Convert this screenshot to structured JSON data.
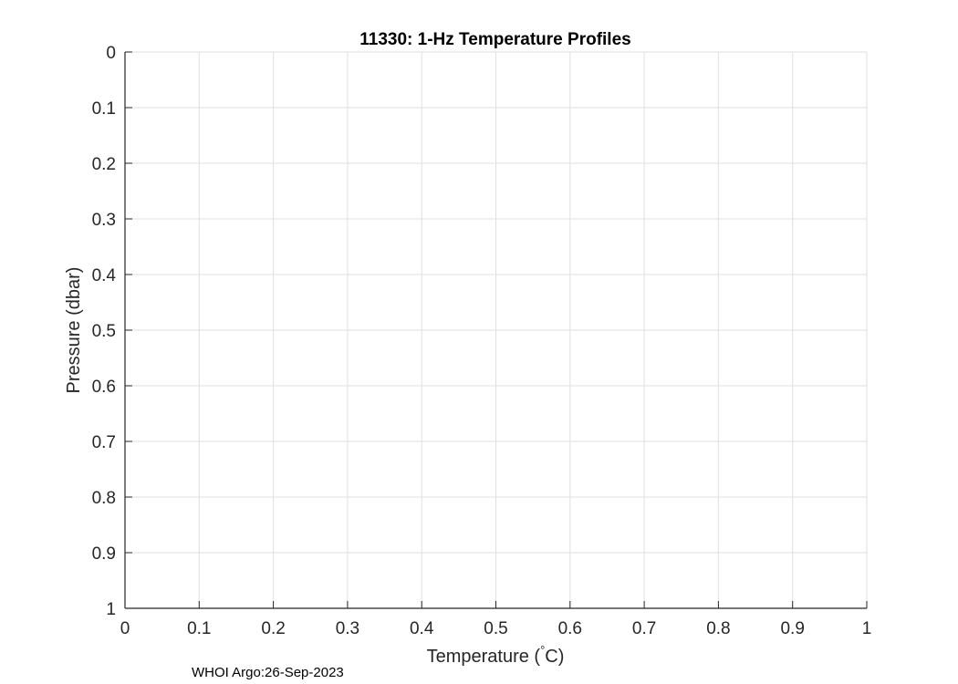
{
  "chart_data": {
    "type": "line",
    "title": "11330: 1-Hz Temperature Profiles",
    "xlabel": "Temperature (",
    "xlabel_unit_degree": "°",
    "xlabel_unit": "C)",
    "ylabel": "Pressure (dbar)",
    "xlim": [
      0,
      1
    ],
    "ylim": [
      0,
      1
    ],
    "y_reversed": true,
    "grid": true,
    "xticks": [
      "0",
      "0.1",
      "0.2",
      "0.3",
      "0.4",
      "0.5",
      "0.6",
      "0.7",
      "0.8",
      "0.9",
      "1"
    ],
    "yticks": [
      "0",
      "0.1",
      "0.2",
      "0.3",
      "0.4",
      "0.5",
      "0.6",
      "0.7",
      "0.8",
      "0.9",
      "1"
    ],
    "series": []
  },
  "footer": "WHOI Argo:26-Sep-2023"
}
